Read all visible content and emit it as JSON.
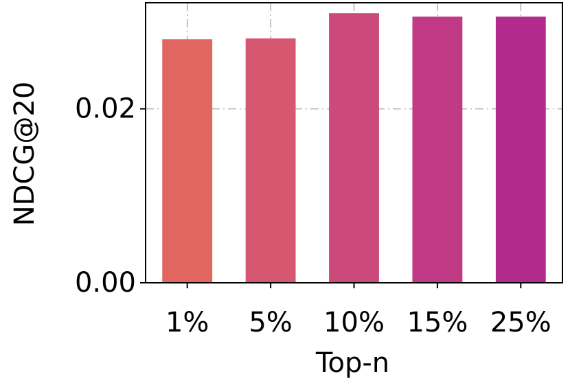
{
  "chart_data": {
    "type": "bar",
    "xlabel": "Top-n",
    "ylabel": "NDCG@20",
    "categories": [
      "1%",
      "5%",
      "10%",
      "15%",
      "25%"
    ],
    "values": [
      0.028,
      0.0281,
      0.031,
      0.0306,
      0.0306
    ],
    "bar_colors": [
      "#e0665f",
      "#d65870",
      "#cc4a7b",
      "#c13a86",
      "#b22a8c"
    ],
    "ylim": [
      0,
      0.0322
    ],
    "yticks": [
      0.0,
      0.02
    ],
    "ytick_labels": [
      "0.00",
      "0.02"
    ],
    "grid": true,
    "grid_style": "dash-dot",
    "grid_color": "#b0b0b0",
    "legend": "none"
  }
}
